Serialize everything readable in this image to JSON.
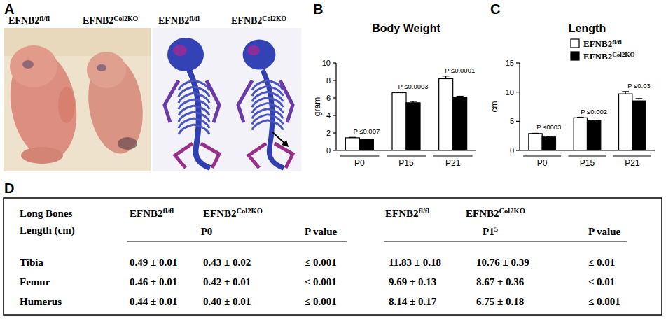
{
  "panel_a": {
    "letter": "A",
    "labels": [
      "EFNB2fl/fl",
      "EFNB2Col2KO",
      "EFNB2fl/fl",
      "EFNB2Col2KO"
    ]
  },
  "chart_data": [
    {
      "letter": "B",
      "type": "bar",
      "title": "Body Weight",
      "y_label": "gram",
      "categories": [
        "P0",
        "P15",
        "P21"
      ],
      "series": [
        {
          "name": "EFNB2fl/fl",
          "color": "#ffffff",
          "values": [
            1.45,
            6.6,
            8.2
          ],
          "errors": [
            0.05,
            0.05,
            0.3
          ]
        },
        {
          "name": "EFNB2Col2KO",
          "color": "#000000",
          "values": [
            1.25,
            5.45,
            6.1
          ],
          "errors": [
            0.05,
            0.15,
            0.1
          ]
        }
      ],
      "annotations": [
        "P ≤0.007",
        "P ≤0.0003",
        "P ≤0.0001"
      ],
      "ylim": [
        0,
        10
      ],
      "yticks": [
        0,
        2,
        4,
        6,
        8,
        10
      ]
    },
    {
      "letter": "C",
      "type": "bar",
      "title": "Length",
      "y_label": "cm",
      "categories": [
        "P0",
        "P15",
        "P21"
      ],
      "series": [
        {
          "name": "EFNB2fl/fl",
          "color": "#ffffff",
          "values": [
            2.9,
            5.6,
            9.7
          ],
          "errors": [
            0.05,
            0.1,
            0.4
          ]
        },
        {
          "name": "EFNB2Col2KO",
          "color": "#000000",
          "values": [
            2.3,
            5.1,
            8.5
          ],
          "errors": [
            0.1,
            0.1,
            0.4
          ]
        }
      ],
      "annotations": [
        "P ≤0003",
        "P ≤0.002",
        "P ≤0.03"
      ],
      "ylim": [
        0,
        15
      ],
      "yticks": [
        0,
        5,
        10,
        15
      ],
      "legend": "top-right"
    }
  ],
  "table": {
    "letter": "D",
    "row_header": [
      "Long Bones",
      "Length (cm)"
    ],
    "groups": [
      {
        "columns": [
          "EFNB2fl/fl",
          "EFNB2Col2KO"
        ],
        "label": "P0",
        "p_header": "P value"
      },
      {
        "columns": [
          "EFNB2fl/fl",
          "EFNB2Col2KO"
        ],
        "label": "P15",
        "p_header": "P value"
      }
    ],
    "rows": [
      {
        "name": "Tibia",
        "cells": [
          "0.49 ± 0.01",
          "0.43 ± 0.02",
          "≤ 0.001",
          "11.83 ± 0.18",
          "10.76 ± 0.39",
          "≤ 0.01"
        ]
      },
      {
        "name": "Femur",
        "cells": [
          "0.46 ± 0.01",
          "0.42 ± 0.01",
          "≤ 0.001",
          "9.69 ± 0.13",
          "8.67 ± 0.36",
          "≤ 0.01"
        ]
      },
      {
        "name": "Humerus",
        "cells": [
          "0.44 ± 0.01",
          "0.40 ± 0.01",
          "≤ 0.001",
          "8.14 ± 0.17",
          "6.75 ± 0.18",
          "≤ 0.001"
        ]
      }
    ]
  }
}
